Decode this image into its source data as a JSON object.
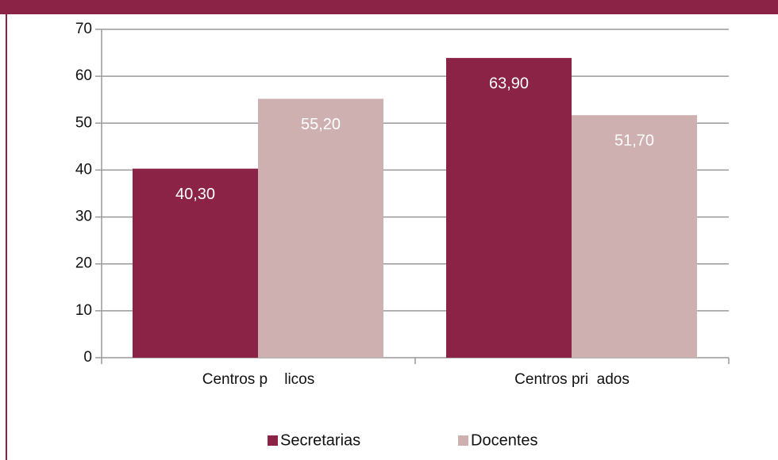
{
  "chart_data": {
    "type": "bar",
    "categories": [
      "Centros p    licos",
      "Centros pri  ados"
    ],
    "series": [
      {
        "name": "Secretarias",
        "color": "#8b2346",
        "values": [
          40.3,
          63.9
        ],
        "value_labels": [
          "40,30",
          "63,90"
        ]
      },
      {
        "name": "Docentes",
        "color": "#cfb0b1",
        "values": [
          55.2,
          51.7
        ],
        "value_labels": [
          "55,20",
          "51,70"
        ]
      }
    ],
    "ylim": [
      0,
      70
    ],
    "yticks": [
      0,
      10,
      20,
      30,
      40,
      50,
      60,
      70
    ],
    "grid": true,
    "legend": "bottom"
  }
}
